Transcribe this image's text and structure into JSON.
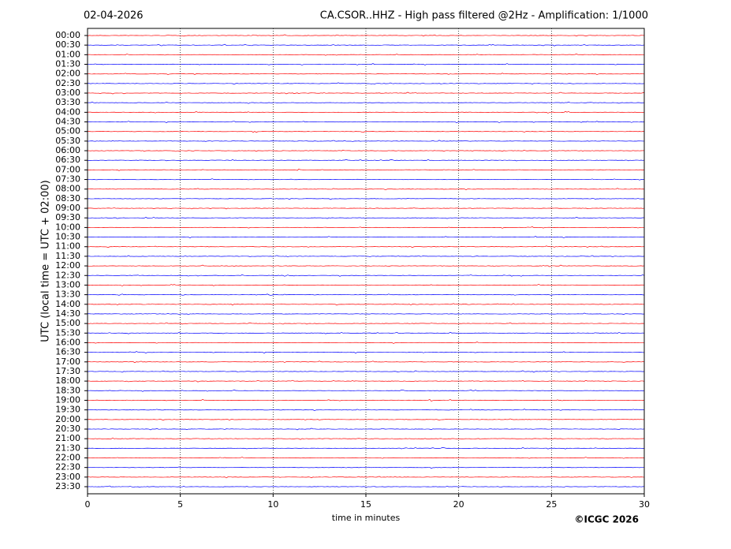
{
  "chart_data": {
    "type": "helicorder",
    "date": "02-04-2026",
    "title": "CA.CSOR..HHZ - High pass filtered @2Hz - Amplification: 1/1000",
    "xlabel": "time in minutes",
    "ylabel": "UTC (local time = UTC + 02:00)",
    "credit": "©ICGC 2026",
    "categories": [
      "00:00",
      "00:30",
      "01:00",
      "01:30",
      "02:00",
      "02:30",
      "03:00",
      "03:30",
      "04:00",
      "04:30",
      "05:00",
      "05:30",
      "06:00",
      "06:30",
      "07:00",
      "07:30",
      "08:00",
      "08:30",
      "09:00",
      "09:30",
      "10:00",
      "10:30",
      "11:00",
      "11:30",
      "12:00",
      "12:30",
      "13:00",
      "13:30",
      "14:00",
      "14:30",
      "15:00",
      "15:30",
      "16:00",
      "16:30",
      "17:00",
      "17:30",
      "18:00",
      "18:30",
      "19:00",
      "19:30",
      "20:00",
      "20:30",
      "21:00",
      "21:30",
      "22:00",
      "22:30",
      "23:00",
      "23:30"
    ],
    "xlim": [
      0,
      30
    ],
    "xticks": [
      0,
      5,
      10,
      15,
      20,
      25,
      30
    ],
    "trace_colors": [
      "#ff0000",
      "#0000ff"
    ],
    "grid": true
  }
}
